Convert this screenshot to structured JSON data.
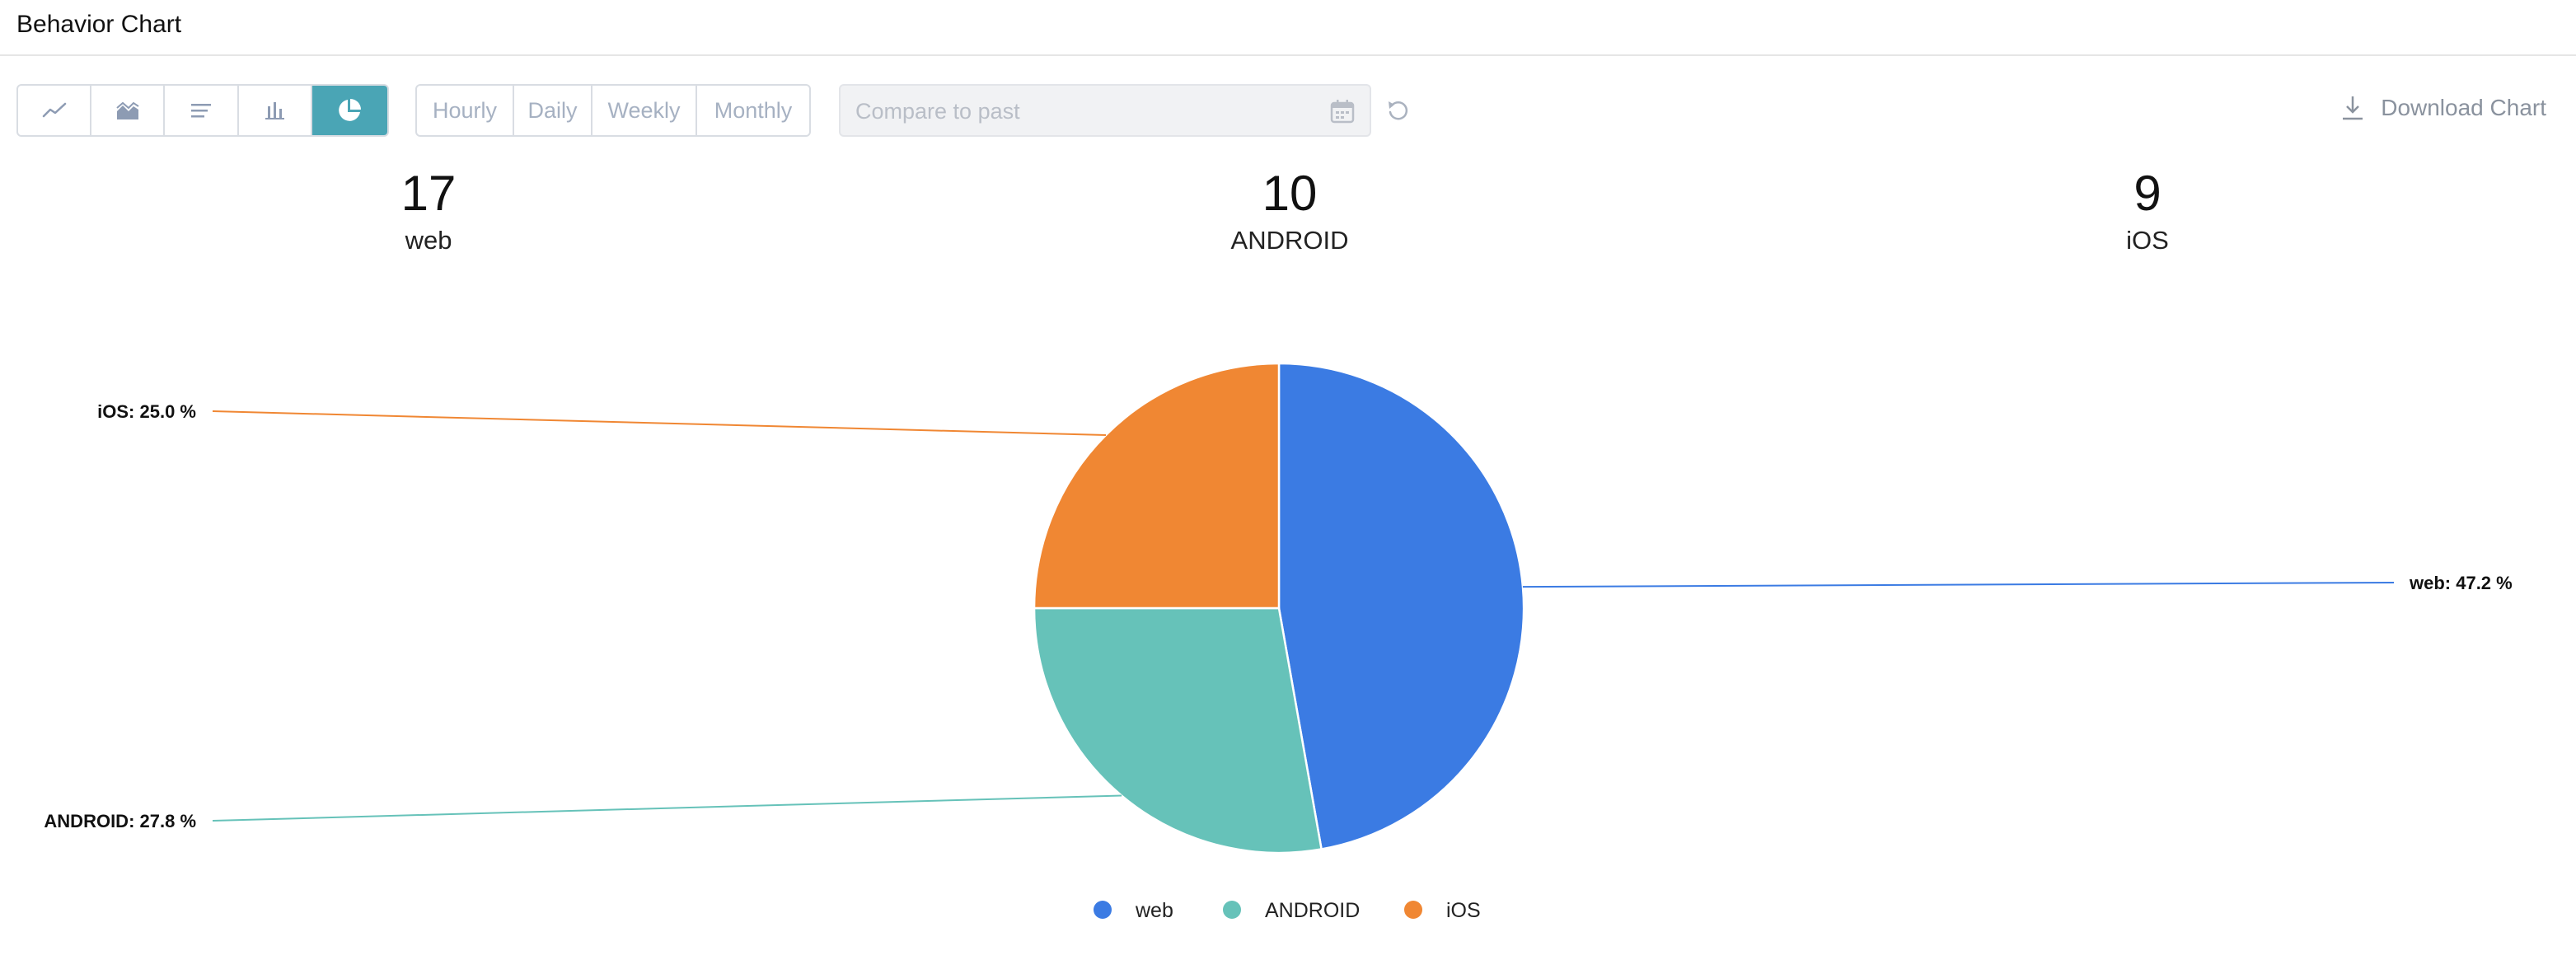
{
  "header": {
    "title": "Behavior Chart"
  },
  "toolbar": {
    "chart_types": [
      {
        "name": "line-chart-icon",
        "active": false
      },
      {
        "name": "area-chart-icon",
        "active": false
      },
      {
        "name": "horizontal-bar-icon",
        "active": false
      },
      {
        "name": "bar-chart-icon",
        "active": false
      },
      {
        "name": "pie-chart-icon",
        "active": true
      }
    ],
    "periods": [
      "Hourly",
      "Daily",
      "Weekly",
      "Monthly"
    ],
    "compare_placeholder": "Compare to past",
    "download_label": "Download Chart"
  },
  "stats": [
    {
      "value": "17",
      "label": "web"
    },
    {
      "value": "10",
      "label": "ANDROID"
    },
    {
      "value": "9",
      "label": "iOS"
    }
  ],
  "colors": {
    "accent": "#4aa5b5",
    "web": "#3b7be3",
    "android": "#66c2b9",
    "ios": "#f08733"
  },
  "chart_data": {
    "type": "pie",
    "labels": [
      "web",
      "ANDROID",
      "iOS"
    ],
    "values": [
      17,
      10,
      9
    ],
    "percent_labels": [
      "web: 47.2 %",
      "ANDROID: 27.8 %",
      "iOS: 25.0 %"
    ],
    "legend": [
      "web",
      "ANDROID",
      "iOS"
    ],
    "legend_position": "bottom"
  }
}
